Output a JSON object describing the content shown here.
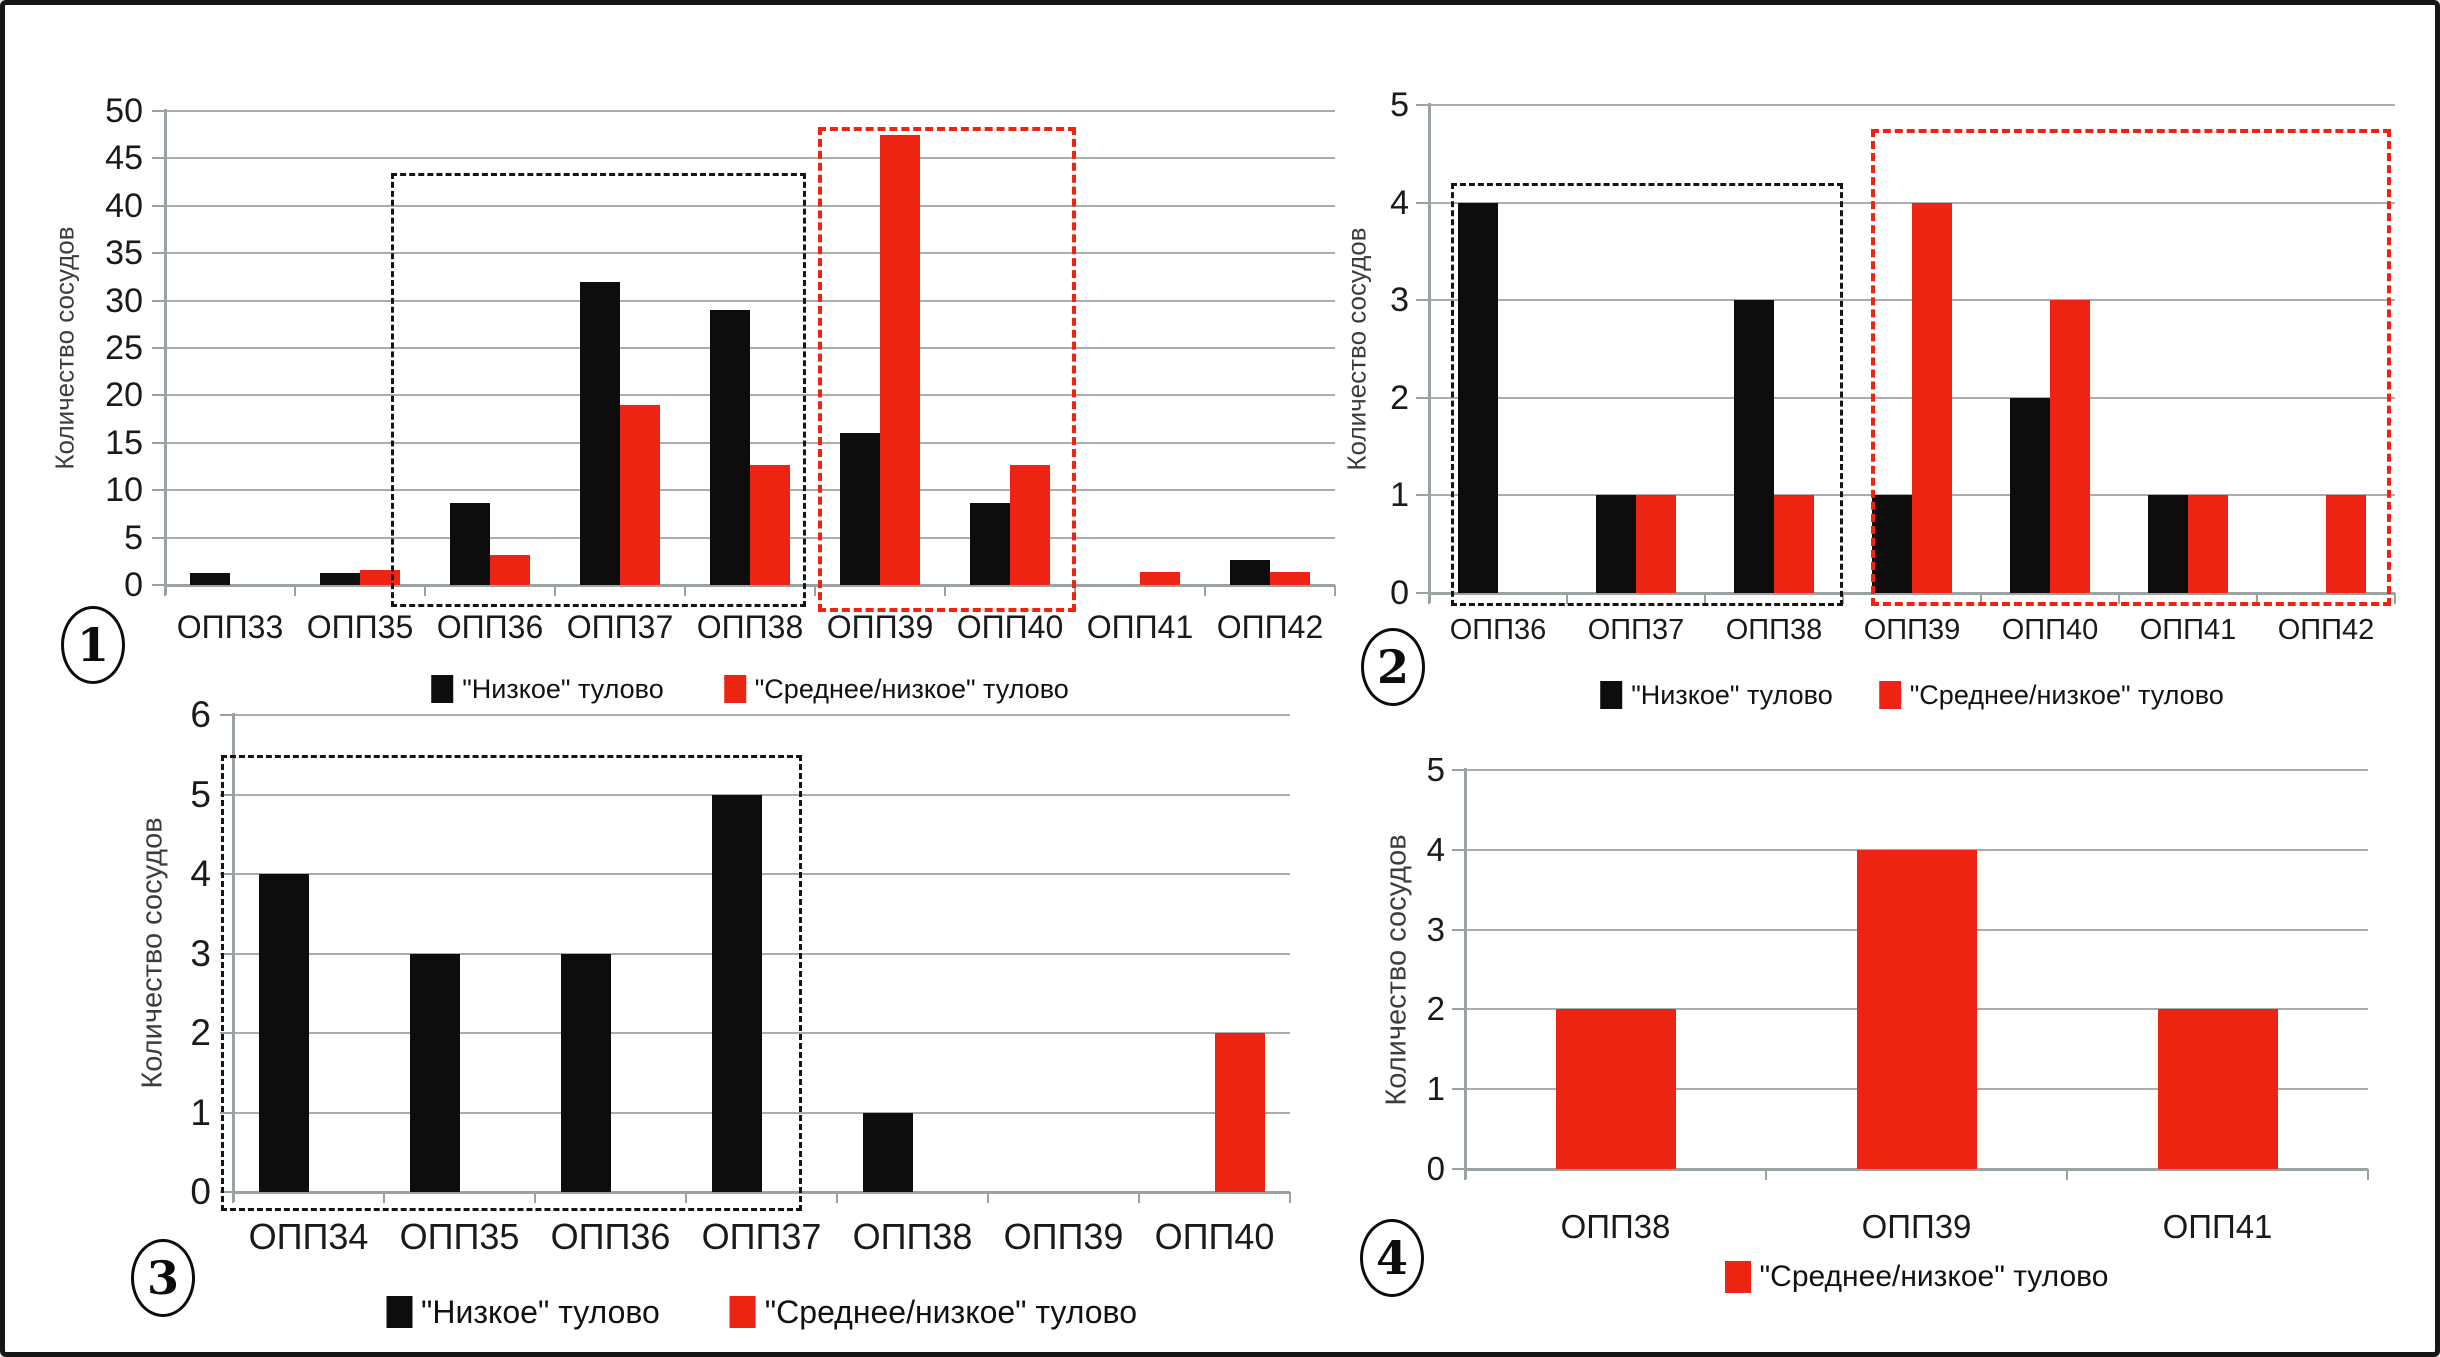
{
  "figure": {
    "background": "#ffffff",
    "border_color": "#161616"
  },
  "colors": {
    "black_series": "#0d0d0d",
    "red_series": "#ee2413",
    "gridline": "#a7aeae",
    "axis_line": "#9aa2a2",
    "text": "#1a1a1a",
    "box_black_dash": "#151515",
    "box_red_dash": "#ef2312"
  },
  "chart_data": [
    {
      "type": "bar",
      "panel_label": "1",
      "ylabel": "Количество сосудов",
      "xlabel": "",
      "title": "",
      "ylim": [
        0,
        50
      ],
      "ytick_step": 5,
      "ytick_labels": [
        "0",
        "5",
        "10",
        "15",
        "20",
        "25",
        "30",
        "35",
        "40",
        "45",
        "50"
      ],
      "grid": true,
      "legend_position": "bottom",
      "categories": [
        "ОПП33",
        "ОПП35",
        "ОПП36",
        "ОПП37",
        "ОПП38",
        "ОПП39",
        "ОПП40",
        "ОПП41",
        "ОПП42"
      ],
      "series": [
        {
          "name": "\"Низкое\" тулово",
          "color_key": "black_series",
          "values": [
            1.3,
            1.3,
            8.7,
            32,
            29,
            16,
            8.7,
            0,
            2.6
          ]
        },
        {
          "name": "\"Среднее/низкое\" тулово",
          "color_key": "red_series",
          "values": [
            0,
            1.6,
            3.2,
            19,
            12.7,
            47.5,
            12.7,
            1.4,
            1.4
          ]
        }
      ],
      "annotation_boxes": [
        {
          "style": "black-dashed",
          "encloses": "ОПП35–ОПП38",
          "from_slot": 1.74,
          "to_slot": 4.93,
          "top_value": 43.5,
          "bottom_value": -2.3
        },
        {
          "style": "red-dashed",
          "encloses": "ОПП39–ОПП40",
          "from_slot": 5.02,
          "to_slot": 7.01,
          "top_value": 48.3,
          "bottom_value": -2.9
        }
      ]
    },
    {
      "type": "bar",
      "panel_label": "2",
      "ylabel": "Количество сосудов",
      "xlabel": "",
      "title": "",
      "ylim": [
        0,
        5
      ],
      "ytick_step": 1,
      "ytick_labels": [
        "0",
        "1",
        "2",
        "3",
        "4",
        "5"
      ],
      "grid": true,
      "legend_position": "bottom",
      "categories": [
        "ОПП36",
        "ОПП37",
        "ОПП38",
        "ОПП39",
        "ОПП40",
        "ОПП41",
        "ОПП42"
      ],
      "series": [
        {
          "name": "\"Низкое\" тулово",
          "color_key": "black_series",
          "values": [
            4,
            1,
            3,
            1,
            2,
            1,
            0
          ]
        },
        {
          "name": "\"Среднее/низкое\" тулово",
          "color_key": "red_series",
          "values": [
            0,
            1,
            1,
            4,
            3,
            1,
            1
          ]
        }
      ],
      "annotation_boxes": [
        {
          "style": "black-dashed",
          "encloses": "ОПП36–ОПП38",
          "from_slot": 0.16,
          "to_slot": 3.0,
          "top_value": 4.2,
          "bottom_value": -0.13
        },
        {
          "style": "red-dashed",
          "encloses": "ОПП39–ОПП42",
          "from_slot": 3.2,
          "to_slot": 6.97,
          "top_value": 4.75,
          "bottom_value": -0.13
        }
      ]
    },
    {
      "type": "bar",
      "panel_label": "3",
      "ylabel": "Количество сосудов",
      "xlabel": "",
      "title": "",
      "ylim": [
        0,
        6
      ],
      "ytick_step": 1,
      "ytick_labels": [
        "0",
        "1",
        "2",
        "3",
        "4",
        "5",
        "6"
      ],
      "grid": true,
      "legend_position": "bottom",
      "categories": [
        "ОПП34",
        "ОПП35",
        "ОПП36",
        "ОПП37",
        "ОПП38",
        "ОПП39",
        "ОПП40"
      ],
      "series": [
        {
          "name": "\"Низкое\" тулово",
          "color_key": "black_series",
          "values": [
            4,
            3,
            3,
            5,
            1,
            0,
            0
          ]
        },
        {
          "name": "\"Среднее/низкое\" тулово",
          "color_key": "red_series",
          "values": [
            0,
            0,
            0,
            0,
            0,
            0,
            2
          ]
        }
      ],
      "annotation_boxes": [
        {
          "style": "black-dashed",
          "encloses": "ОПП34–ОПП37",
          "from_slot": -0.08,
          "to_slot": 3.77,
          "top_value": 5.5,
          "bottom_value": -0.24
        }
      ]
    },
    {
      "type": "bar",
      "panel_label": "4",
      "ylabel": "Количество сосудов",
      "xlabel": "",
      "title": "",
      "ylim": [
        0,
        5
      ],
      "ytick_step": 1,
      "ytick_labels": [
        "0",
        "1",
        "2",
        "3",
        "4",
        "5"
      ],
      "grid": true,
      "legend_position": "bottom",
      "categories": [
        "ОПП38",
        "ОПП39",
        "ОПП41"
      ],
      "series": [
        {
          "name": "\"Среднее/низкое\" тулово",
          "color_key": "red_series",
          "values": [
            2,
            4,
            2
          ]
        }
      ],
      "annotation_boxes": []
    }
  ]
}
